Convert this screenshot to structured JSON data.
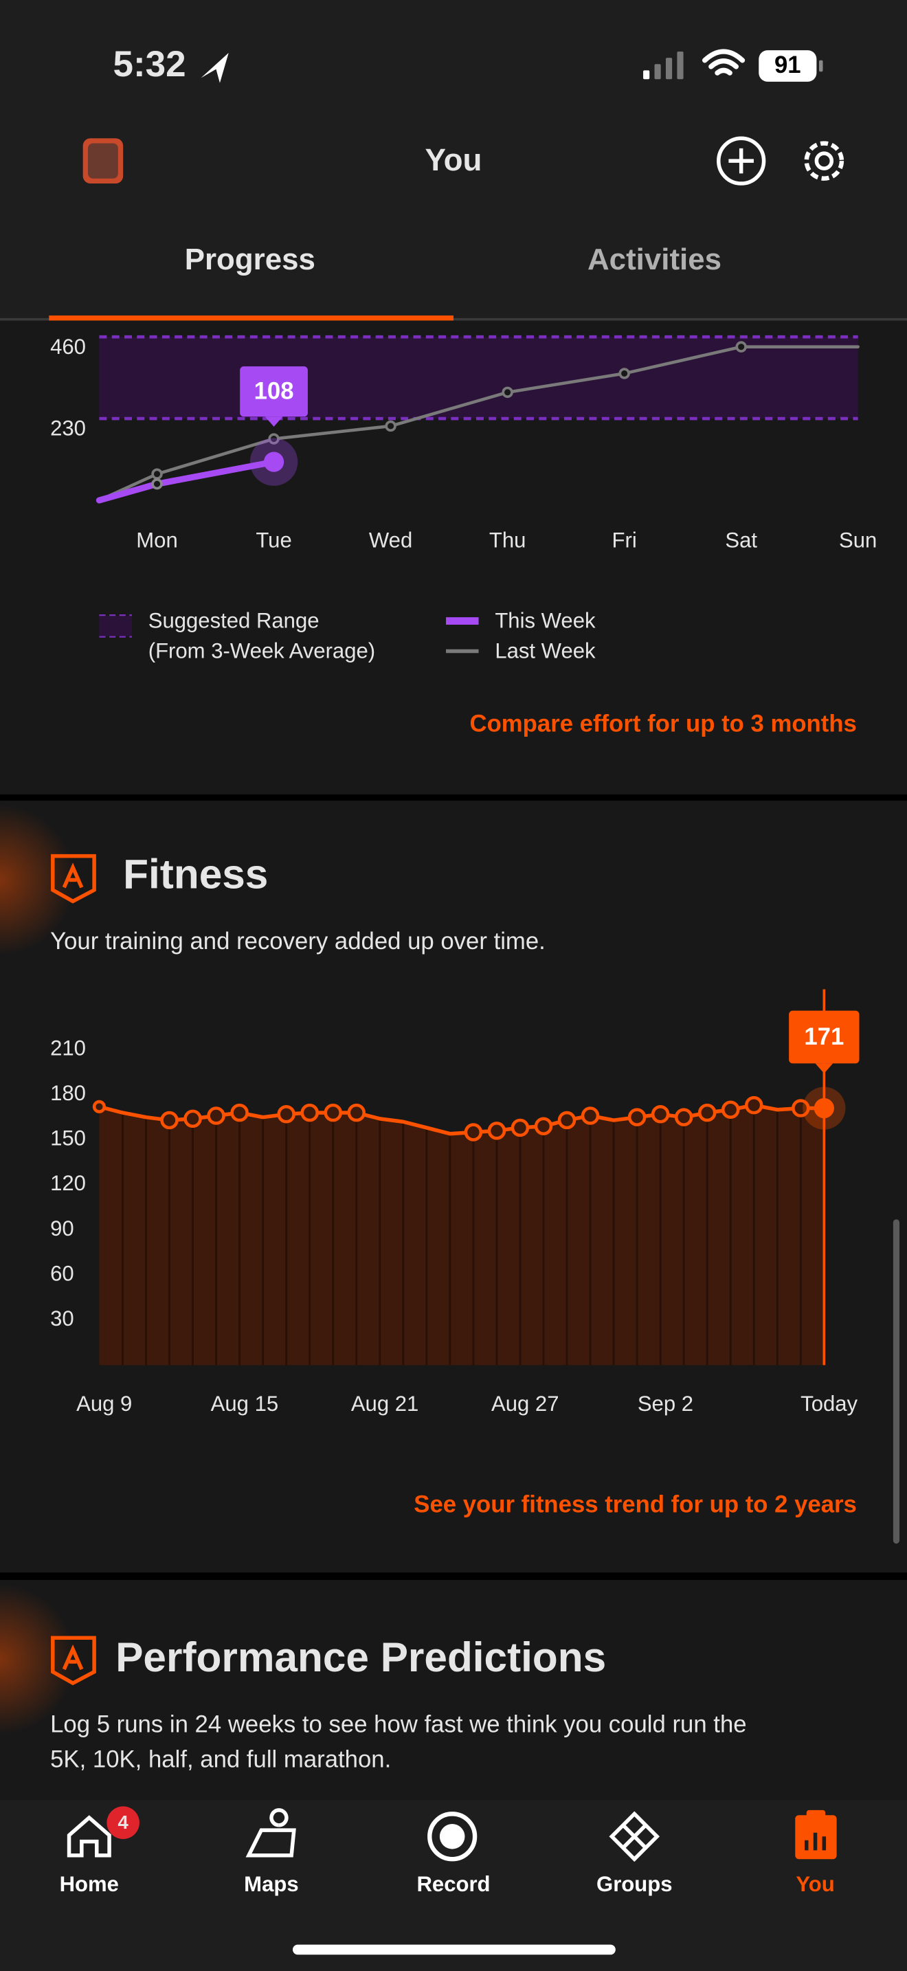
{
  "status": {
    "time": "5:32",
    "battery": "91"
  },
  "header": {
    "title": "You",
    "tabs": [
      "Progress",
      "Activities"
    ]
  },
  "effort_chart": {
    "type": "line",
    "categories": [
      null,
      "Mon",
      "Tue",
      "Wed",
      "Thu",
      "Fri",
      "Sat",
      "Sun"
    ],
    "ylim": [
      0,
      460
    ],
    "yticks": [
      230,
      460
    ],
    "range": [
      230,
      460
    ],
    "series": [
      {
        "name": "This Week",
        "color": "#a64bf4",
        "values": [
          0,
          46,
          108
        ]
      },
      {
        "name": "Last Week",
        "color": "#7a7a7a",
        "values": [
          0,
          74,
          173,
          209,
          304,
          357,
          432,
          432
        ]
      }
    ],
    "range_legend": [
      "Suggested Range",
      "(From 3-Week Average)"
    ],
    "link": "Compare effort for up to 3 months"
  },
  "fitness": {
    "title": "Fitness",
    "subtitle": "Your training and recovery added up over time.",
    "chart": {
      "type": "area",
      "color": "#fc5200",
      "x_labels": [
        {
          "index": 0,
          "label": "Aug 9"
        },
        {
          "index": 6,
          "label": "Aug 15"
        },
        {
          "index": 12,
          "label": "Aug 21"
        },
        {
          "index": 18,
          "label": "Aug 27"
        },
        {
          "index": 24,
          "label": "Sep 2"
        },
        {
          "index": 31,
          "label": "Today"
        }
      ],
      "values": [
        172,
        168,
        165,
        163,
        164,
        166,
        168,
        165,
        167,
        168,
        168,
        168,
        164,
        162,
        158,
        154,
        155,
        156,
        158,
        159,
        163,
        166,
        163,
        165,
        167,
        165,
        168,
        170,
        173,
        170,
        171,
        171
      ],
      "markers": [
        true,
        false,
        false,
        true,
        true,
        true,
        true,
        false,
        true,
        true,
        true,
        true,
        false,
        false,
        false,
        false,
        true,
        true,
        true,
        true,
        true,
        true,
        false,
        true,
        true,
        true,
        true,
        true,
        true,
        false,
        true,
        true
      ],
      "ylim": [
        0,
        210
      ],
      "yticks": [
        30,
        60,
        90,
        120,
        150,
        180,
        210
      ]
    },
    "link": "See your fitness trend for up to 2 years"
  },
  "predictions": {
    "title": "Performance Predictions",
    "text": [
      "Log 5 runs in 24 weeks to see how fast we think you could run the",
      "5K, 10K, half, and full marathon."
    ]
  },
  "nav": {
    "items": [
      "Home",
      "Maps",
      "Record",
      "Groups",
      "You"
    ],
    "badge": "4"
  }
}
